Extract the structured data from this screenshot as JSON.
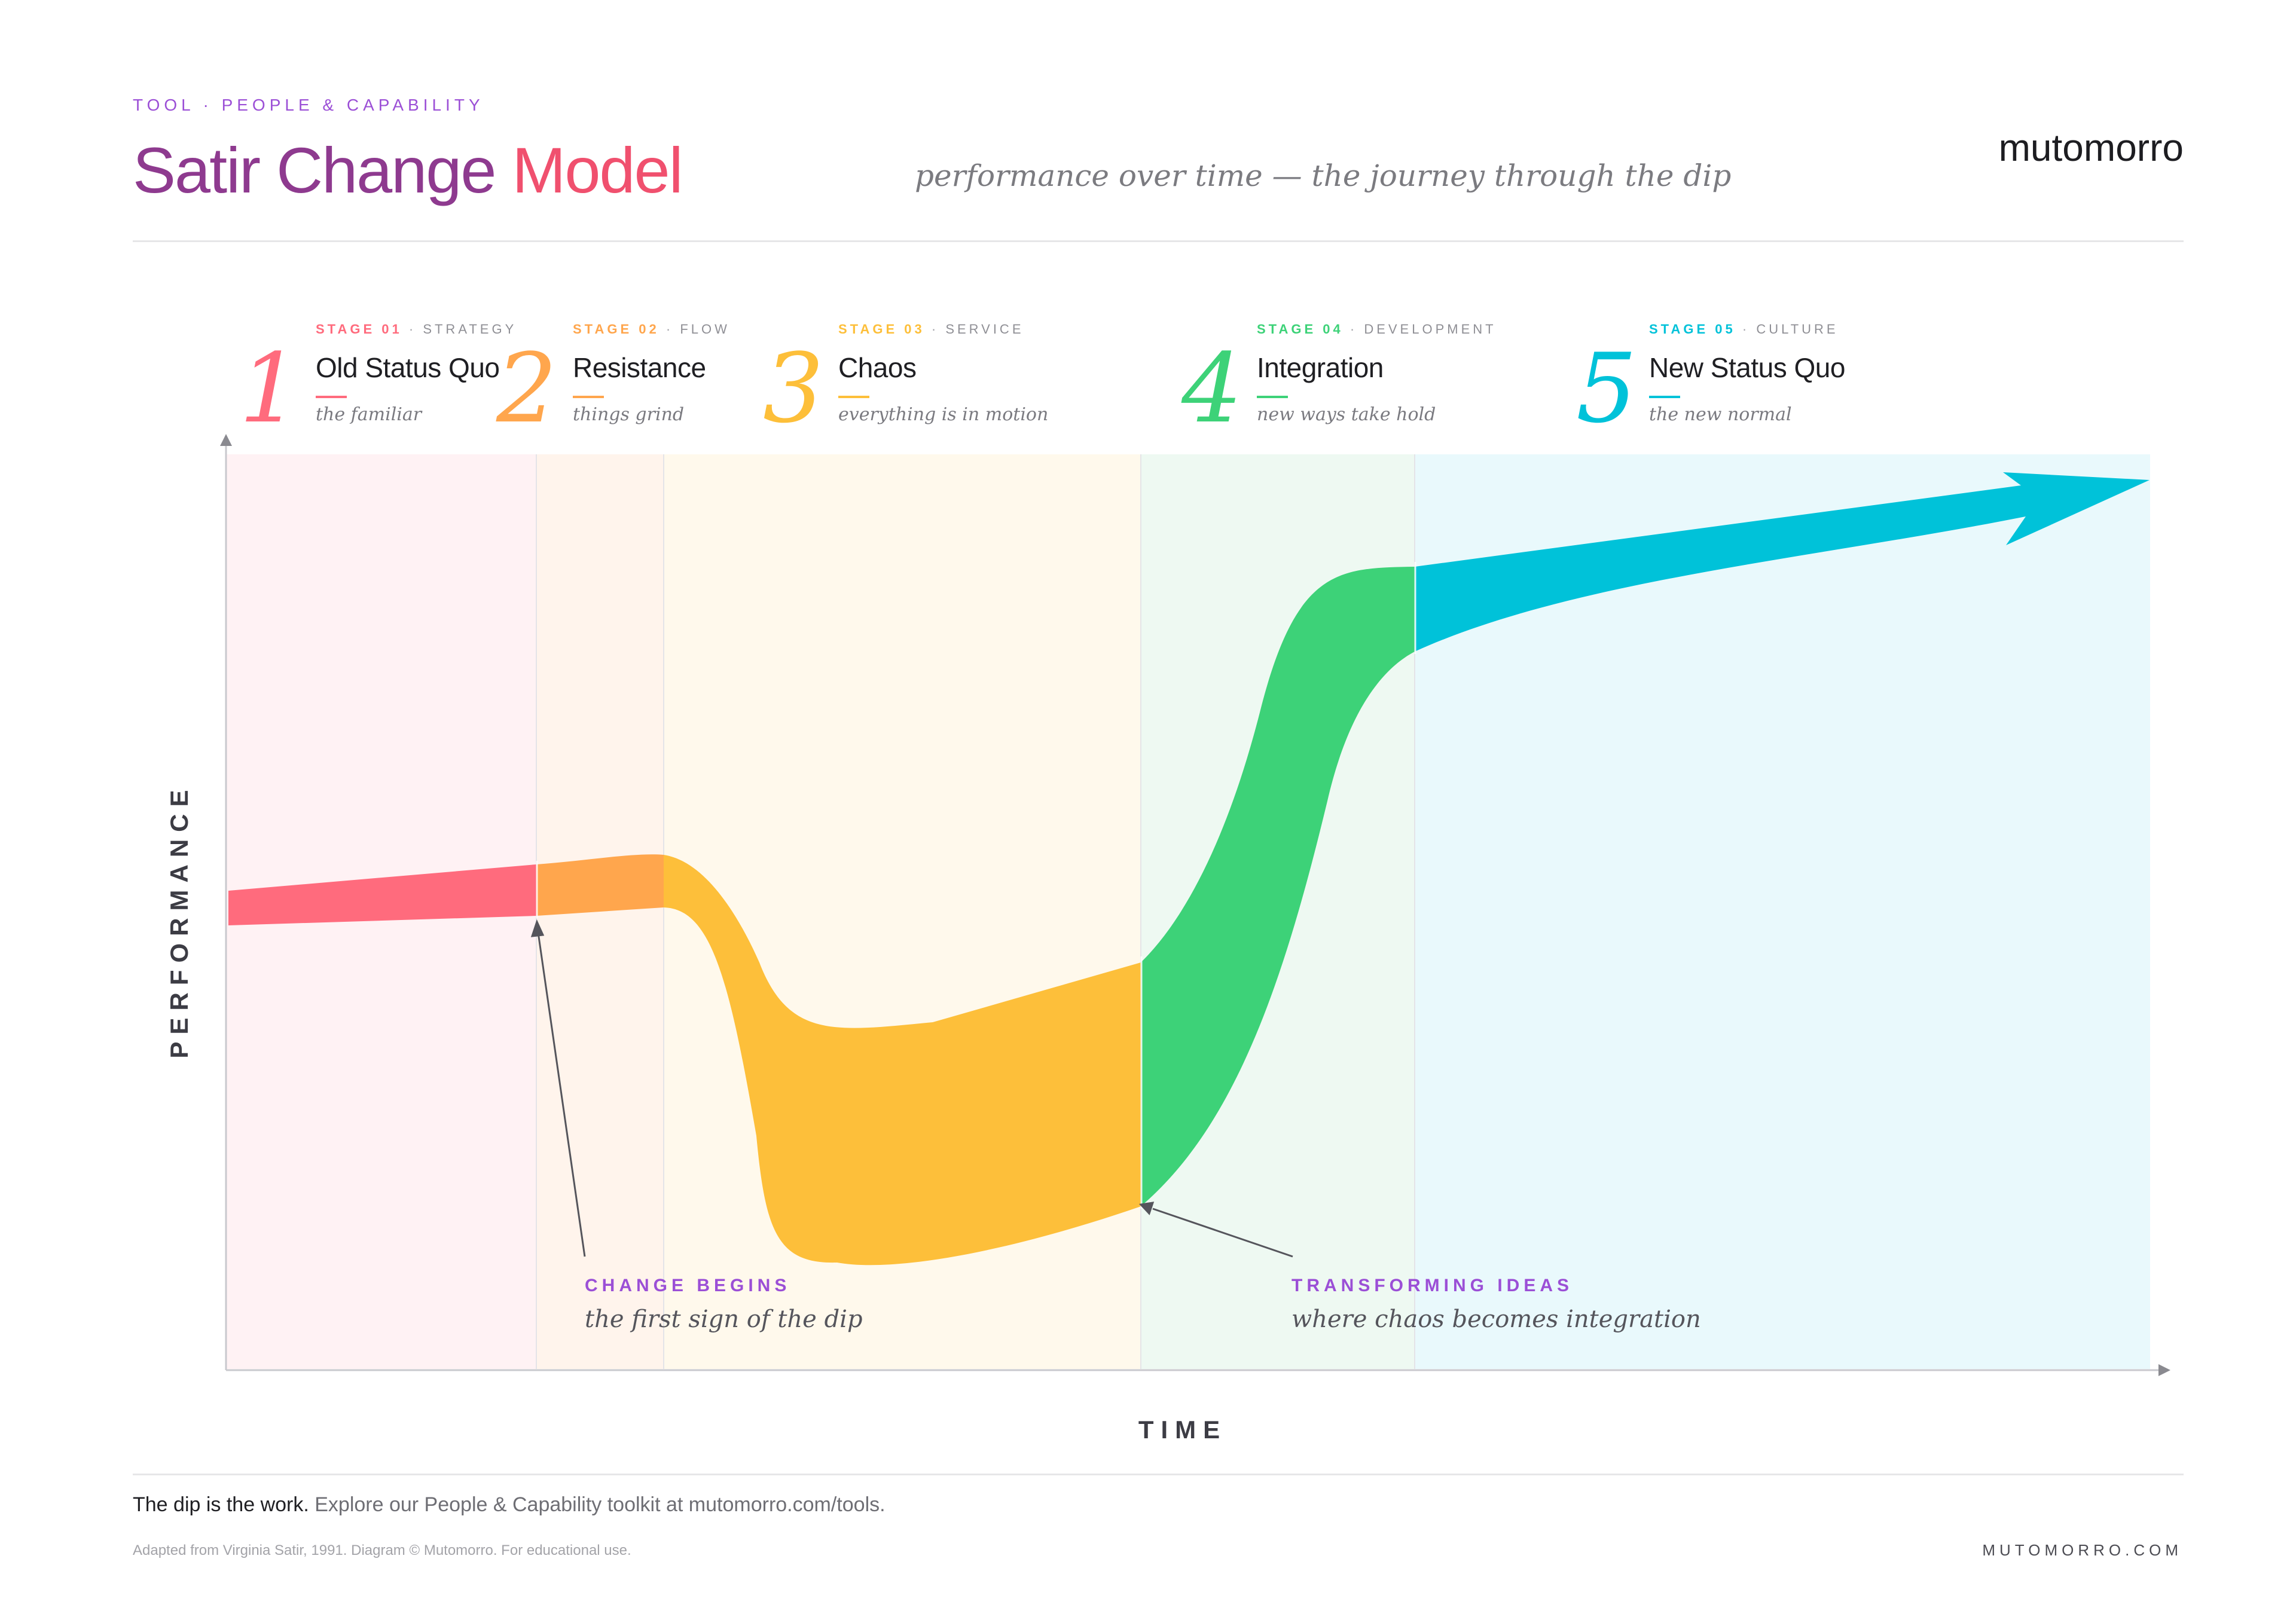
{
  "header": {
    "eyebrow": "TOOL · PEOPLE & CAPABILITY",
    "title_part1": "Satir Change ",
    "title_part2": "Model",
    "subtitle": "performance over time — the journey through the dip",
    "brand": "mutomorro"
  },
  "stages": [
    {
      "number": "1",
      "label": "STAGE 01",
      "sep": " · ",
      "category": "STRATEGY",
      "name": "Old Status Quo",
      "tagline": "the familiar",
      "color": "#ff6b7d"
    },
    {
      "number": "2",
      "label": "STAGE 02",
      "sep": " · ",
      "category": "FLOW",
      "name": "Resistance",
      "tagline": "things grind",
      "color": "#ffa64d"
    },
    {
      "number": "3",
      "label": "STAGE 03",
      "sep": " · ",
      "category": "SERVICE",
      "name": "Chaos",
      "tagline": "everything is in motion",
      "color": "#fdbf3a"
    },
    {
      "number": "4",
      "label": "STAGE 04",
      "sep": " · ",
      "category": "DEVELOPMENT",
      "name": "Integration",
      "tagline": "new ways take hold",
      "color": "#3dd278"
    },
    {
      "number": "5",
      "label": "STAGE 05",
      "sep": " · ",
      "category": "CULTURE",
      "name": "New Status Quo",
      "tagline": "the new normal",
      "color": "#00c2d9"
    }
  ],
  "axes": {
    "y_label": "PERFORMANCE",
    "x_label": "TIME"
  },
  "annotations": {
    "change_begins": {
      "kicker": "CHANGE BEGINS",
      "text": "the first sign of the dip"
    },
    "transforming": {
      "kicker": "TRANSFORMING IDEAS",
      "text": "where chaos becomes integration"
    }
  },
  "footer": {
    "lead": "The dip is the work.",
    "rest": " Explore our People & Capability toolkit at mutomorro.com/tools.",
    "credit": "Adapted from Virginia Satir, 1991. Diagram © Mutomorro. For educational use.",
    "url": "MUTOMORRO.COM"
  },
  "colors": {
    "accent_purple": "#9b4fd6",
    "title_gradient_start": "#8e3a8f",
    "title_gradient_end": "#ff4f70"
  }
}
